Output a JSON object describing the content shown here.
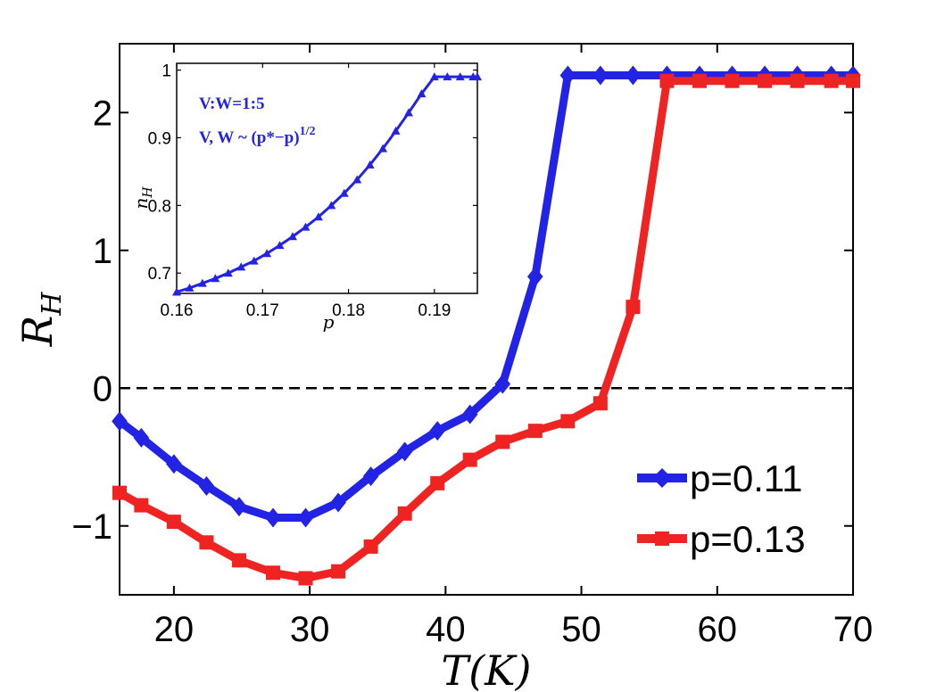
{
  "chart_data": [
    {
      "type": "line",
      "xlabel_main": "T",
      "xlabel_unit": "(K)",
      "ylabel_main": "R",
      "ylabel_sub": "H",
      "xlim": [
        16,
        70
      ],
      "ylim": [
        -1.5,
        2.5
      ],
      "xticks": [
        20,
        30,
        40,
        50,
        60,
        70
      ],
      "xtick_labels": [
        "20",
        "30",
        "40",
        "50",
        "60",
        "70"
      ],
      "yticks": [
        -1,
        0,
        1,
        2
      ],
      "ytick_labels": [
        "−1",
        "0",
        "1",
        "2"
      ],
      "reference_line": {
        "y": 0,
        "style": "dashed",
        "color": "#000000"
      },
      "legend_location": "lower-right",
      "series": [
        {
          "name": "p=0.11",
          "color": "#2323e6",
          "marker": "diamond",
          "x": [
            16,
            17.6,
            20,
            22.4,
            24.8,
            27.3,
            29.7,
            32.1,
            34.5,
            37,
            39.4,
            41.8,
            44.2,
            46.6,
            49,
            51.4,
            53.8,
            56.3,
            58.7,
            61.1,
            63.5,
            65.9,
            68.4,
            70
          ],
          "y": [
            -0.24,
            -0.36,
            -0.55,
            -0.71,
            -0.86,
            -0.94,
            -0.94,
            -0.83,
            -0.64,
            -0.46,
            -0.31,
            -0.19,
            0.03,
            0.81,
            2.27,
            2.27,
            2.27,
            2.27,
            2.27,
            2.27,
            2.27,
            2.27,
            2.27,
            2.27
          ]
        },
        {
          "name": "p=0.13",
          "color": "#f02323",
          "marker": "square",
          "x": [
            16,
            17.6,
            20,
            22.4,
            24.8,
            27.3,
            29.7,
            32.1,
            34.5,
            37,
            39.4,
            41.8,
            44.2,
            46.6,
            49,
            51.4,
            53.8,
            56.3,
            58.7,
            61.1,
            63.5,
            65.9,
            68.4,
            70
          ],
          "y": [
            -0.76,
            -0.85,
            -0.97,
            -1.12,
            -1.25,
            -1.34,
            -1.38,
            -1.33,
            -1.15,
            -0.91,
            -0.69,
            -0.52,
            -0.39,
            -0.31,
            -0.24,
            -0.11,
            0.59,
            2.23,
            2.23,
            2.23,
            2.23,
            2.23,
            2.23,
            2.23
          ]
        }
      ]
    },
    {
      "type": "line",
      "inset": true,
      "xlabel": "p",
      "ylabel_main": "n",
      "ylabel_sub": "H",
      "xlim": [
        0.16,
        0.195
      ],
      "ylim": [
        0.67,
        1.01
      ],
      "xticks": [
        0.16,
        0.17,
        0.18,
        0.19
      ],
      "xtick_labels": [
        "0.16",
        "0.17",
        "0.18",
        "0.19"
      ],
      "yticks": [
        0.7,
        0.8,
        0.9,
        1
      ],
      "ytick_labels": [
        "0.7",
        "0.8",
        "0.9",
        "1"
      ],
      "annotations": [
        "V:W=1:5",
        "V, W ~ (p*−p)",
        "1/2"
      ],
      "series": [
        {
          "name": "n_H",
          "color": "#2323e6",
          "marker": "triangle",
          "x": [
            0.16,
            0.1615,
            0.163,
            0.1645,
            0.166,
            0.1675,
            0.169,
            0.1705,
            0.172,
            0.1735,
            0.175,
            0.1765,
            0.178,
            0.1795,
            0.181,
            0.1825,
            0.184,
            0.1855,
            0.187,
            0.1885,
            0.19,
            0.1915,
            0.193,
            0.1945,
            0.195
          ],
          "y": [
            0.672,
            0.678,
            0.685,
            0.692,
            0.7,
            0.709,
            0.718,
            0.729,
            0.741,
            0.754,
            0.768,
            0.783,
            0.8,
            0.818,
            0.838,
            0.86,
            0.884,
            0.91,
            0.937,
            0.965,
            0.99,
            0.99,
            0.99,
            0.99,
            0.99
          ]
        }
      ]
    }
  ]
}
